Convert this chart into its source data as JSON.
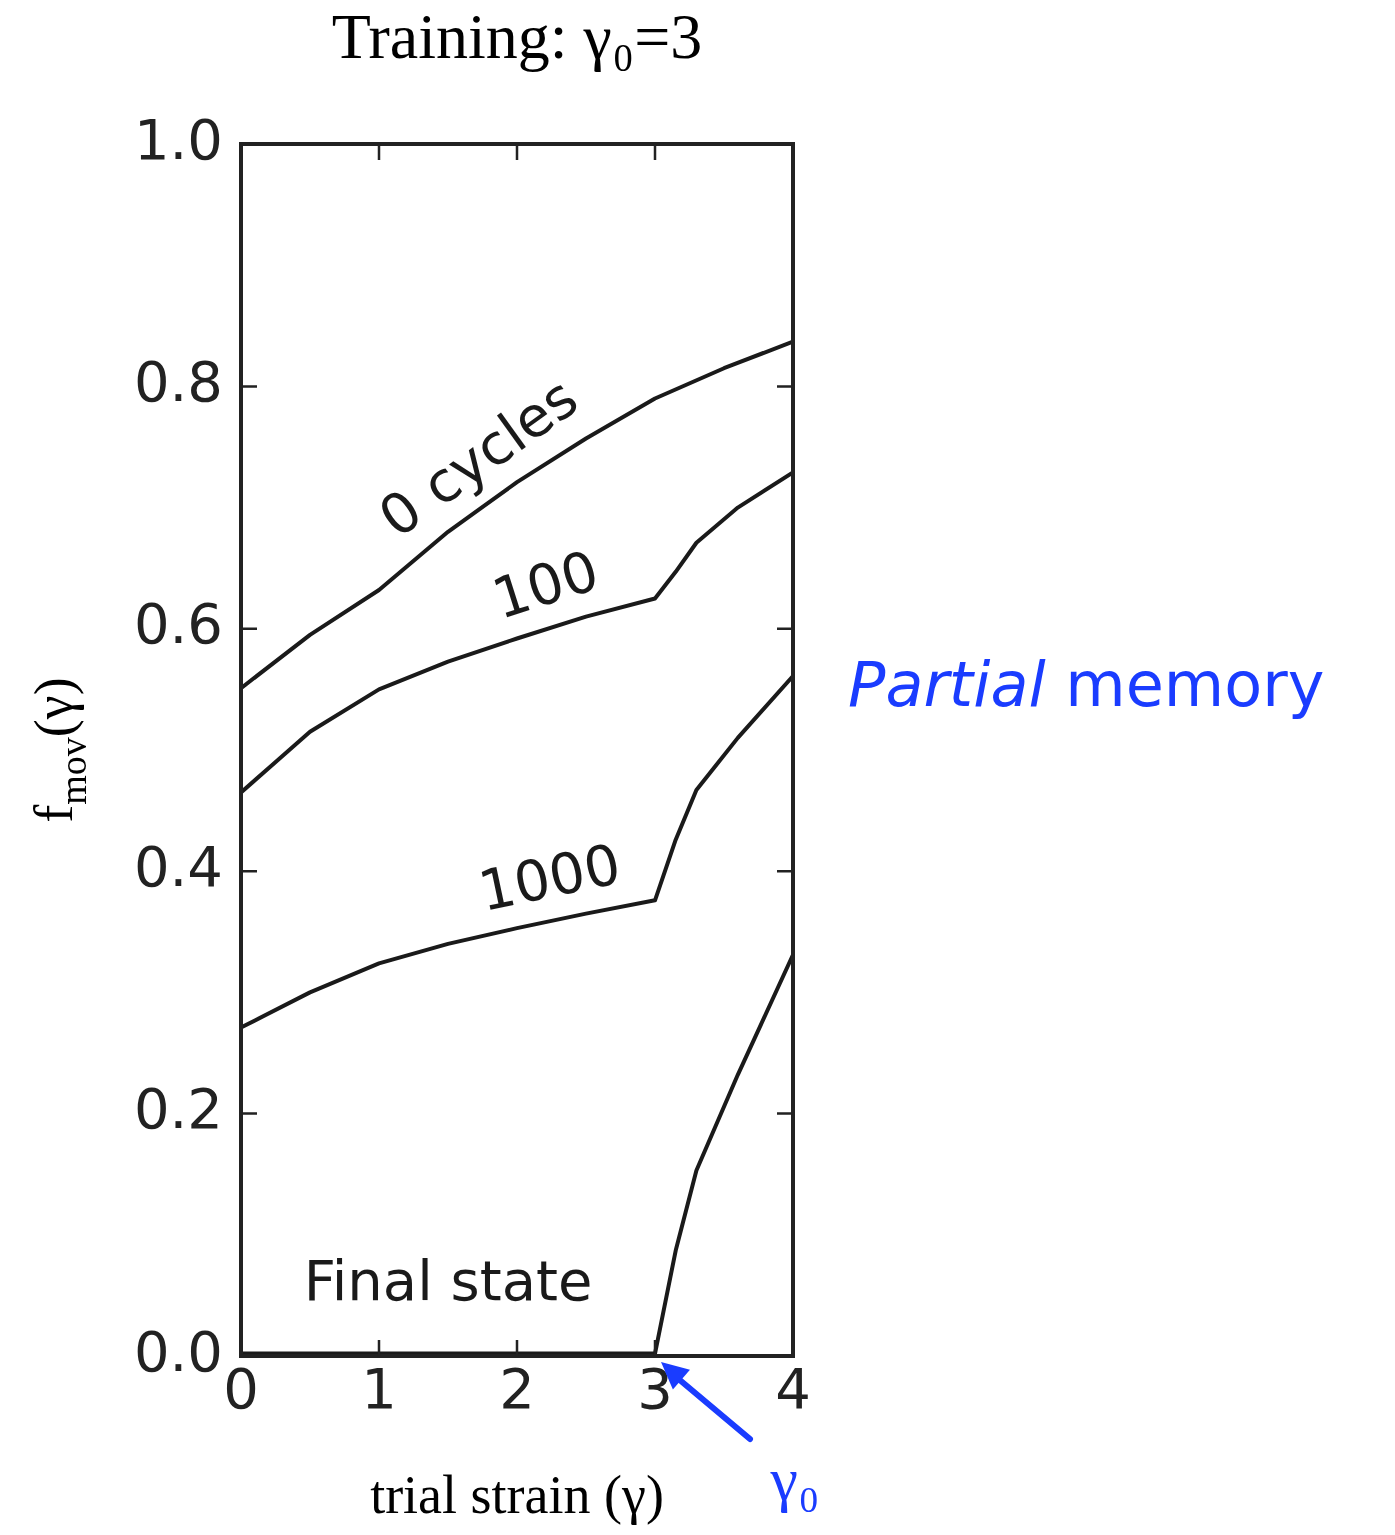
{
  "chart_data": {
    "type": "line",
    "title": "Training: γ₀=3",
    "xlabel": "trial strain (γ)",
    "ylabel": "f$_{mov}$(γ)",
    "xlim": [
      0,
      4
    ],
    "xticks": [
      0,
      1,
      2,
      3,
      4
    ],
    "ylim": [
      0,
      1
    ],
    "yticks": [
      {
        "value": 0,
        "label": "0.0"
      },
      0.2,
      0.4,
      0.6,
      0.8,
      {
        "value": 1,
        "label": "1.0"
      }
    ],
    "grid": false,
    "legend": false,
    "marker": "none",
    "line_style": "solid",
    "series": [
      {
        "name": "0 cycles",
        "color": "#1a1a1a",
        "x": [
          0,
          0.5,
          1,
          1.5,
          2,
          2.5,
          3,
          3.5,
          4
        ],
        "values": [
          0.551,
          0.595,
          0.632,
          0.68,
          0.721,
          0.757,
          0.79,
          0.815,
          0.837
        ]
      },
      {
        "name": "100",
        "color": "#1a1a1a",
        "x": [
          0,
          0.5,
          1,
          1.5,
          2,
          2.5,
          3,
          3.15,
          3.3,
          3.6,
          4
        ],
        "values": [
          0.465,
          0.515,
          0.55,
          0.573,
          0.592,
          0.61,
          0.625,
          0.647,
          0.671,
          0.7,
          0.729
        ]
      },
      {
        "name": "1000",
        "color": "#1a1a1a",
        "x": [
          0,
          0.5,
          1,
          1.5,
          2,
          2.5,
          3,
          3.15,
          3.3,
          3.6,
          4
        ],
        "values": [
          0.271,
          0.3,
          0.324,
          0.34,
          0.353,
          0.365,
          0.376,
          0.426,
          0.467,
          0.51,
          0.561
        ]
      },
      {
        "name": "Final state",
        "color": "#1a1a1a",
        "x": [
          0,
          1,
          2,
          3,
          3.15,
          3.3,
          3.6,
          4
        ],
        "values": [
          0.002,
          0.002,
          0.002,
          0.002,
          0.087,
          0.153,
          0.232,
          0.331
        ]
      }
    ],
    "annotations": [
      "Partial memory",
      {
        "text": "γ₀",
        "x": 3,
        "y": 0
      }
    ]
  }
}
